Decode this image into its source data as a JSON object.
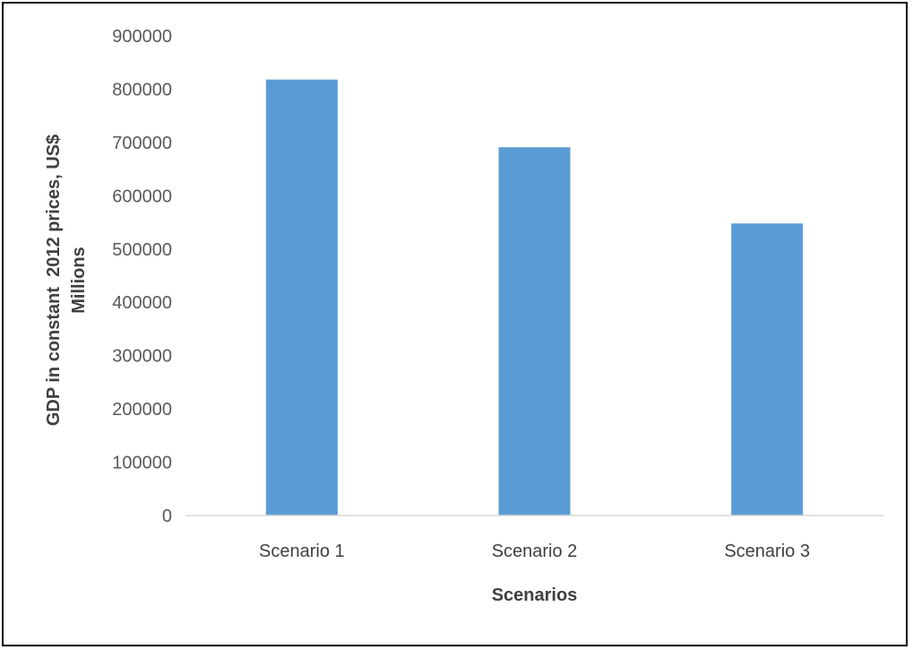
{
  "chart_data": {
    "type": "bar",
    "categories": [
      "Scenario 1",
      "Scenario 2",
      "Scenario 3"
    ],
    "series": [
      {
        "values": [
          818000,
          691000,
          548000
        ],
        "color": "#5b9bd5"
      }
    ],
    "title": "",
    "xlabel": "Scenarios",
    "ylabel_lines": [
      "GDP in constant  2012 prices, US$",
      "Millions"
    ],
    "ylim": [
      0,
      900000
    ],
    "yticks": [
      0,
      100000,
      200000,
      300000,
      400000,
      500000,
      600000,
      700000,
      800000,
      900000
    ],
    "grid": false,
    "legend": "none"
  }
}
